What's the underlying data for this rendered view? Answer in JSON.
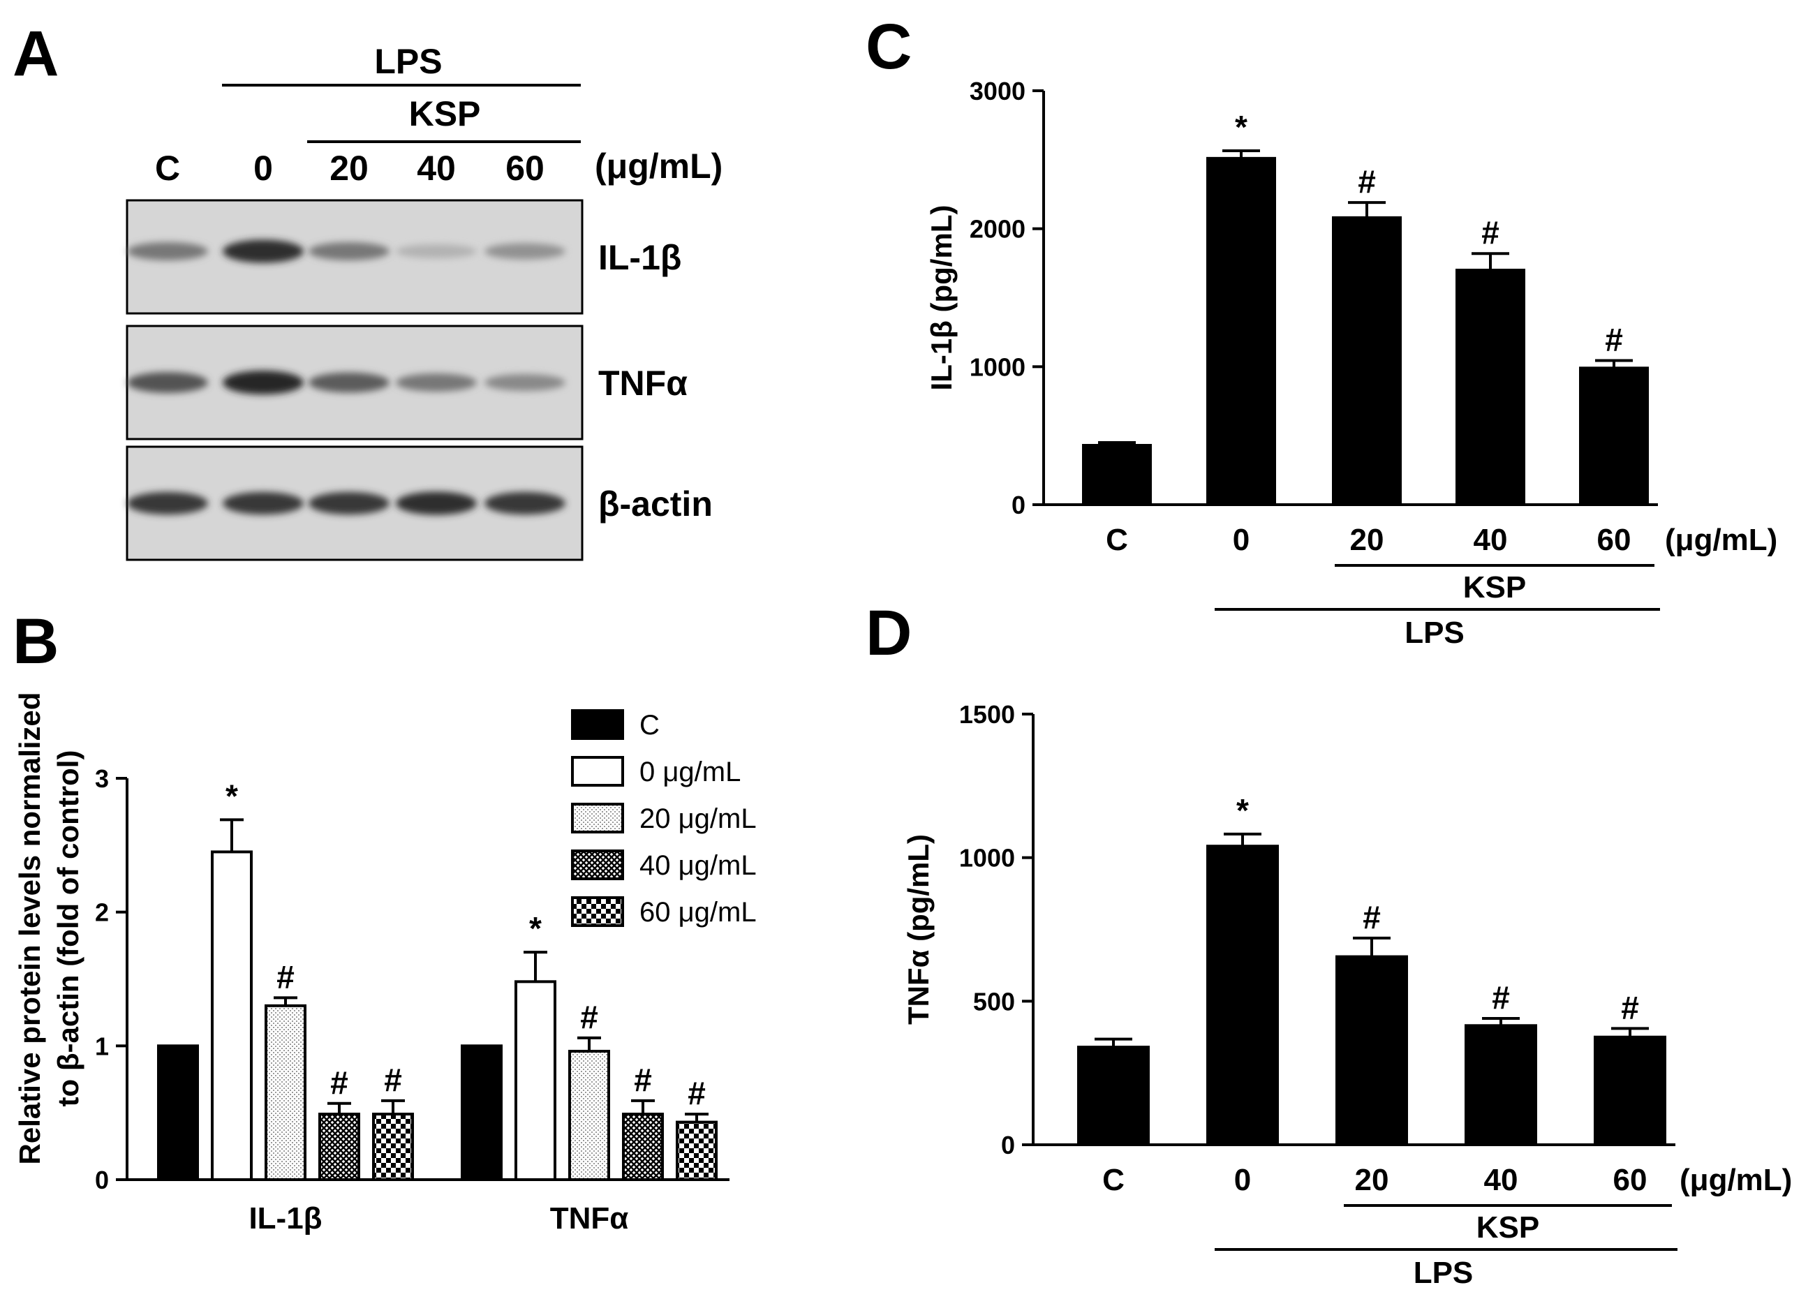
{
  "panels": {
    "A": {
      "label": "A",
      "treatment": "LPS",
      "subtreatment": "KSP",
      "lanes": [
        "C",
        "0",
        "20",
        "40",
        "60"
      ],
      "unit": "(μg/mL)",
      "bands": [
        {
          "name": "IL-1β",
          "intensity": [
            0.45,
            0.85,
            0.45,
            0.12,
            0.3
          ]
        },
        {
          "name": "TNFα",
          "intensity": [
            0.65,
            0.9,
            0.6,
            0.45,
            0.35
          ]
        },
        {
          "name": "β-actin",
          "intensity": [
            0.8,
            0.8,
            0.8,
            0.85,
            0.8
          ]
        }
      ]
    },
    "B": {
      "label": "B"
    },
    "C": {
      "label": "C"
    },
    "D": {
      "label": "D"
    }
  },
  "chart_data": [
    {
      "panel": "B",
      "type": "bar",
      "ylabel_line1": "Relative protein levels normalized",
      "ylabel_line2": "to β-actin (fold of control)",
      "ylim": [
        0,
        3
      ],
      "yticks": [
        "0",
        "1",
        "2",
        "3"
      ],
      "categories": [
        "IL-1β",
        "TNFα"
      ],
      "legend_position": "top-right",
      "series": [
        {
          "name": "C",
          "fill": "solid",
          "values": [
            1.0,
            1.0
          ],
          "errors": [
            0,
            0
          ],
          "marks": [
            "",
            ""
          ]
        },
        {
          "name": "0 μg/mL",
          "fill": "white",
          "values": [
            2.45,
            1.48
          ],
          "errors": [
            0.24,
            0.22
          ],
          "marks": [
            "*",
            "*"
          ]
        },
        {
          "name": "20 μg/mL",
          "fill": "dots",
          "values": [
            1.3,
            0.96
          ],
          "errors": [
            0.06,
            0.1
          ],
          "marks": [
            "#",
            "#"
          ]
        },
        {
          "name": "40 μg/mL",
          "fill": "cross",
          "values": [
            0.49,
            0.49
          ],
          "errors": [
            0.08,
            0.1
          ],
          "marks": [
            "#",
            "#"
          ]
        },
        {
          "name": "60 μg/mL",
          "fill": "checker",
          "values": [
            0.49,
            0.43
          ],
          "errors": [
            0.1,
            0.06
          ],
          "marks": [
            "#",
            "#"
          ]
        }
      ]
    },
    {
      "panel": "C",
      "type": "bar",
      "ylabel": "IL-1β (pg/mL)",
      "ylim": [
        0,
        3000
      ],
      "yticks": [
        "0",
        "1000",
        "2000",
        "3000"
      ],
      "categories": [
        "C",
        "0",
        "20",
        "40",
        "60"
      ],
      "unit": "(μg/mL)",
      "values": [
        430,
        2510,
        2080,
        1700,
        990
      ],
      "errors": [
        20,
        55,
        110,
        120,
        55
      ],
      "marks": [
        "",
        "*",
        "#",
        "#",
        "#"
      ],
      "bracket_inner": "KSP",
      "bracket_outer": "LPS"
    },
    {
      "panel": "D",
      "type": "bar",
      "ylabel": "TNFα (pg/mL)",
      "ylim": [
        0,
        1500
      ],
      "yticks": [
        "0",
        "500",
        "1000",
        "1500"
      ],
      "categories": [
        "C",
        "0",
        "20",
        "40",
        "60"
      ],
      "unit": "(μg/mL)",
      "values": [
        340,
        1040,
        655,
        415,
        375
      ],
      "errors": [
        28,
        42,
        65,
        25,
        30
      ],
      "marks": [
        "",
        "*",
        "#",
        "#",
        "#"
      ],
      "bracket_inner": "KSP",
      "bracket_outer": "LPS"
    }
  ]
}
